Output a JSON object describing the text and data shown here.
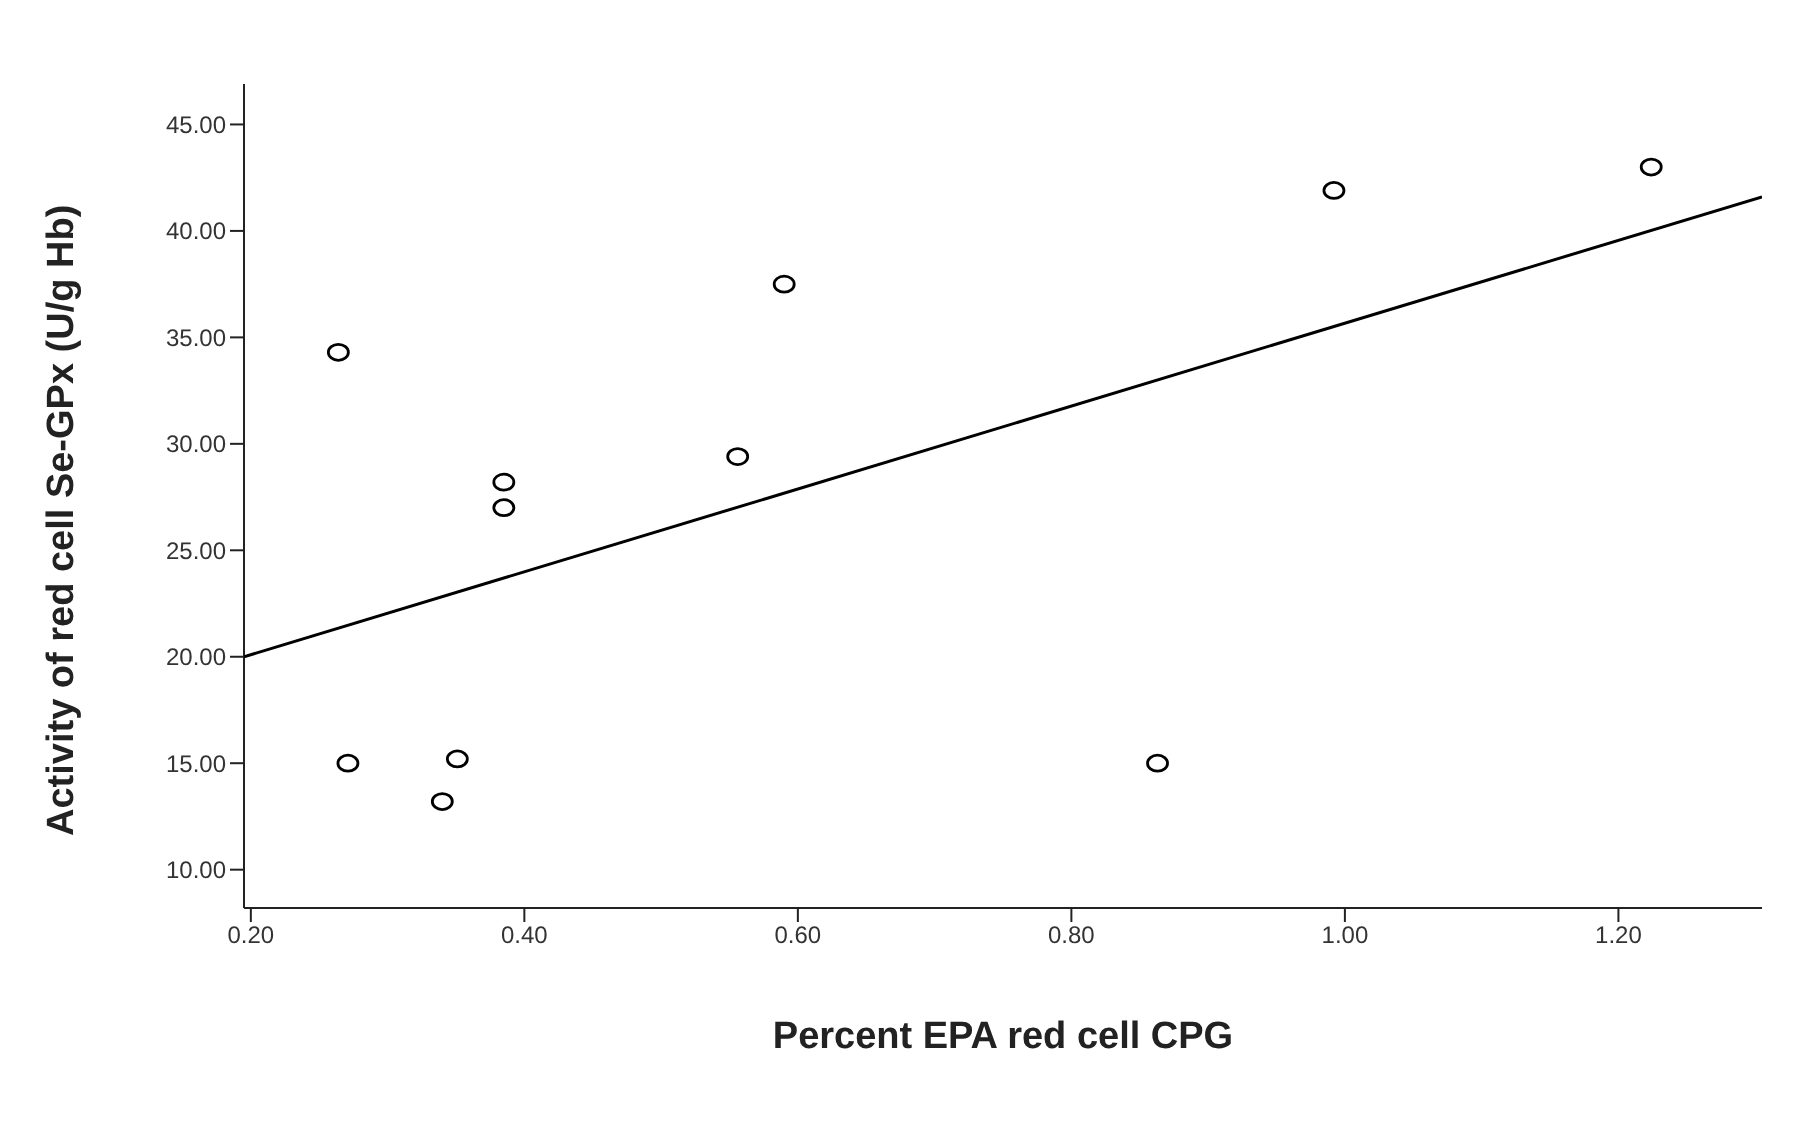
{
  "chart_data": {
    "type": "scatter",
    "xlabel": "Percent EPA red cell CPG",
    "ylabel": "Activity of red cell Se-GPx (U/g Hb)",
    "series": [
      {
        "color": "#000000",
        "marker": "circle",
        "x": [
          0.264,
          0.271,
          0.34,
          0.351,
          0.385,
          0.385,
          0.556,
          0.59,
          0.863,
          0.992,
          1.224
        ],
        "values": [
          34.3,
          15.0,
          13.2,
          15.2,
          28.2,
          27.0,
          29.4,
          37.5,
          15.0,
          41.9,
          43.0
        ]
      },
      {
        "type": "line",
        "color": "#000000",
        "x": [
          0.195,
          1.305
        ],
        "values": [
          20.0,
          41.6
        ]
      }
    ],
    "xlim": [
      0.195,
      1.305
    ],
    "ylim": [
      8.2,
      46.9
    ],
    "xticks": [
      {
        "value": 0.2,
        "label": "0.20"
      },
      {
        "value": 0.4,
        "label": "0.40"
      },
      {
        "value": 0.6,
        "label": "0.60"
      },
      {
        "value": 0.8,
        "label": "0.80"
      },
      {
        "value": 1.0,
        "label": "1.00"
      },
      {
        "value": 1.2,
        "label": "1.20"
      }
    ],
    "yticks": [
      {
        "value": 10,
        "label": "10.00"
      },
      {
        "value": 15,
        "label": "15.00"
      },
      {
        "value": 20,
        "label": "20.00"
      },
      {
        "value": 25,
        "label": "25.00"
      },
      {
        "value": 30,
        "label": "30.00"
      },
      {
        "value": 35,
        "label": "35.00"
      },
      {
        "value": 40,
        "label": "40.00"
      },
      {
        "value": 45,
        "label": "45.00"
      }
    ],
    "grid": false
  }
}
